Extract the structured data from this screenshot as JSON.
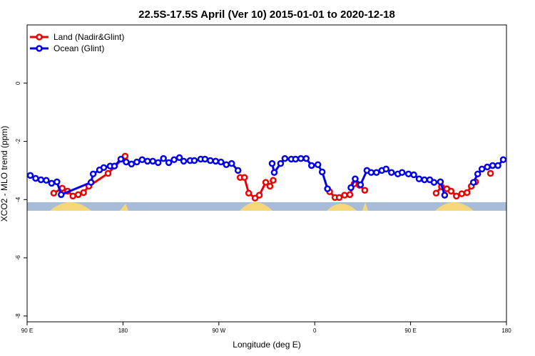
{
  "chart_data": {
    "type": "line",
    "title": "22.5S-17.5S April (Ver 10)   2015-01-01 to 2020-12-18",
    "x_label": "Longitude (deg E)",
    "y_label": "XCO2 - MLO trend (ppm)",
    "xlim": [
      90,
      540
    ],
    "ylim": [
      -8.2,
      2
    ],
    "xticks": [
      {
        "value": 90,
        "label": "90 E"
      },
      180,
      {
        "value": 270,
        "label": "90 W"
      },
      {
        "value": 360,
        "label": "0"
      },
      {
        "value": 450,
        "label": "90 E"
      },
      {
        "value": 540,
        "label": "180"
      }
    ],
    "yticks": [
      0,
      -2,
      -4,
      -6,
      -8
    ],
    "legend": "top-left",
    "series": [
      {
        "name": "Land (Nadir&Glint)",
        "color": "#ee0000",
        "x": [
          115,
          123,
          128,
          133,
          138,
          143,
          148,
          166,
          182,
          null,
          290,
          294,
          298,
          304,
          308,
          314,
          318,
          321,
          null,
          374,
          379,
          383,
          388,
          393,
          397,
          402,
          407,
          null,
          474,
          479,
          484,
          488,
          493,
          498,
          503,
          507,
          511,
          null,
          525
        ],
        "values": [
          -3.78,
          -3.61,
          -3.71,
          -3.88,
          -3.83,
          -3.76,
          -3.54,
          -3.1,
          -2.51,
          null,
          -3.24,
          -3.24,
          -3.78,
          -3.95,
          -3.85,
          -3.41,
          -3.54,
          -3.34,
          null,
          -3.73,
          -3.93,
          -3.93,
          -3.85,
          -3.83,
          -3.46,
          -3.51,
          -3.68,
          null,
          -3.78,
          -3.56,
          -3.63,
          -3.71,
          -3.88,
          -3.8,
          -3.76,
          -3.54,
          -3.39,
          null,
          -3.1
        ]
      },
      {
        "name": "Ocean (Glint)",
        "color": "#0000ee",
        "x": [
          93,
          98,
          103,
          108,
          113,
          118,
          122,
          150,
          152,
          158,
          162,
          168,
          172,
          178,
          183,
          188,
          193,
          198,
          203,
          208,
          213,
          218,
          223,
          228,
          233,
          237,
          243,
          247,
          253,
          257,
          262,
          267,
          272,
          277,
          282,
          288,
          null,
          320,
          322,
          328,
          332,
          338,
          342,
          347,
          352,
          357,
          363,
          367,
          372,
          null,
          394,
          398,
          403,
          409,
          413,
          418,
          423,
          427,
          432,
          438,
          442,
          448,
          453,
          458,
          463,
          468,
          472,
          478,
          482,
          null,
          509,
          513,
          517,
          522,
          527,
          532,
          537
        ],
        "values": [
          -3.17,
          -3.27,
          -3.32,
          -3.34,
          -3.44,
          -3.39,
          -3.83,
          -3.41,
          -3.12,
          -2.98,
          -2.9,
          -2.85,
          -2.85,
          -2.61,
          -2.71,
          -2.78,
          -2.71,
          -2.63,
          -2.68,
          -2.68,
          -2.73,
          -2.59,
          -2.73,
          -2.63,
          -2.56,
          -2.68,
          -2.66,
          -2.66,
          -2.61,
          -2.61,
          -2.66,
          -2.68,
          -2.71,
          -2.8,
          -2.76,
          -3.0,
          null,
          -2.76,
          -3.07,
          -2.76,
          -2.59,
          -2.61,
          -2.61,
          -2.59,
          -2.59,
          -2.83,
          -2.8,
          -3.05,
          -3.63,
          null,
          -3.59,
          -3.29,
          -3.49,
          -3.0,
          -3.07,
          -3.07,
          -3.0,
          -2.95,
          -3.07,
          -3.12,
          -3.07,
          -3.12,
          -3.15,
          -3.29,
          -3.32,
          -3.32,
          -3.41,
          -3.39,
          -3.85,
          null,
          -3.41,
          -3.12,
          -2.95,
          -2.88,
          -2.83,
          -2.83,
          -2.63
        ]
      }
    ]
  }
}
